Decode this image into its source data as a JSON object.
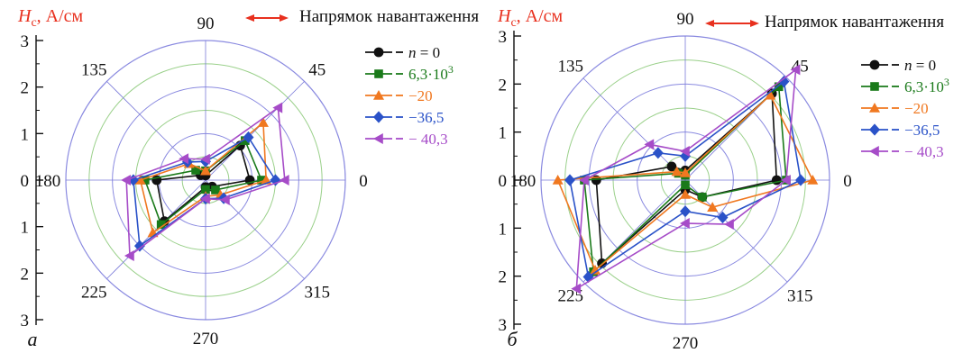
{
  "chart_data": [
    {
      "type": "polar-line",
      "panel_label": "а",
      "ylabel": "Hc, А/см",
      "ylabel_symbol": "H",
      "ylabel_sub": "c",
      "ylabel_unit": ", А/см",
      "direction_label": "Напрямок навантаження",
      "angle_ticks": [
        "0",
        "45",
        "90",
        "135",
        "180",
        "225",
        "270",
        "315"
      ],
      "radial_ticks": [
        "3",
        "2",
        "1",
        "0",
        "1",
        "2",
        "3"
      ],
      "rlim": [
        0,
        3
      ],
      "angles": [
        0,
        45,
        90,
        135,
        180,
        225,
        270,
        315
      ],
      "series": [
        {
          "name_var": "n",
          "name": " = 0",
          "color": "#111111",
          "marker": "circle",
          "values": [
            0.95,
            1.05,
            0.1,
            0.15,
            1.05,
            1.25,
            0.15,
            0.2
          ]
        },
        {
          "name": "6,3·10",
          "name_sup": "3",
          "color": "#1a7a1a",
          "marker": "square",
          "values": [
            1.2,
            1.2,
            0.2,
            0.3,
            1.3,
            1.35,
            0.2,
            0.3
          ]
        },
        {
          "name": "−20",
          "color": "#f07820",
          "marker": "triangle-up",
          "values": [
            1.3,
            1.75,
            0.2,
            0.5,
            1.4,
            1.6,
            0.35,
            0.45
          ]
        },
        {
          "name": "−36,5",
          "color": "#2a52c8",
          "marker": "diamond",
          "values": [
            1.5,
            1.3,
            0.4,
            0.55,
            1.55,
            2.0,
            0.4,
            0.55
          ]
        },
        {
          "name": "− 40,3",
          "color": "#a64cc8",
          "marker": "triangle-left",
          "values": [
            1.7,
            2.2,
            0.45,
            0.65,
            1.7,
            2.3,
            0.4,
            0.6
          ]
        }
      ]
    },
    {
      "type": "polar-line",
      "panel_label": "б",
      "ylabel": "Hc, А/см",
      "ylabel_symbol": "H",
      "ylabel_sub": "c",
      "ylabel_unit": ", А/см",
      "direction_label": "Напрямок навантаження",
      "angle_ticks": [
        "0",
        "45",
        "90",
        "135",
        "180",
        "225",
        "270",
        "315"
      ],
      "radial_ticks": [
        "3",
        "2",
        "1",
        "0",
        "1",
        "2",
        "3"
      ],
      "rlim": [
        0,
        3
      ],
      "angles": [
        0,
        45,
        90,
        135,
        180,
        225,
        270,
        315
      ],
      "series": [
        {
          "name_var": "n",
          "name": " = 0",
          "color": "#111111",
          "marker": "circle",
          "values": [
            1.9,
            2.55,
            0.2,
            0.4,
            1.85,
            2.45,
            0.2,
            0.5
          ]
        },
        {
          "name": "6,3·10",
          "name_sup": "3",
          "color": "#1a7a1a",
          "marker": "square",
          "values": [
            2.1,
            2.75,
            0.1,
            0.2,
            2.1,
            2.7,
            0.1,
            0.5
          ]
        },
        {
          "name": "−20",
          "color": "#f07820",
          "marker": "triangle-up",
          "values": [
            2.65,
            2.5,
            0.15,
            0.25,
            2.65,
            2.65,
            0.3,
            0.8
          ]
        },
        {
          "name": "−36,5",
          "color": "#2a52c8",
          "marker": "diamond",
          "values": [
            2.4,
            2.9,
            0.5,
            0.8,
            2.4,
            2.85,
            0.65,
            1.1
          ]
        },
        {
          "name": "− 40,3",
          "color": "#a64cc8",
          "marker": "triangle-left",
          "values": [
            2.1,
            3.25,
            0.6,
            1.05,
            2.1,
            3.2,
            0.9,
            1.3
          ]
        }
      ]
    }
  ]
}
